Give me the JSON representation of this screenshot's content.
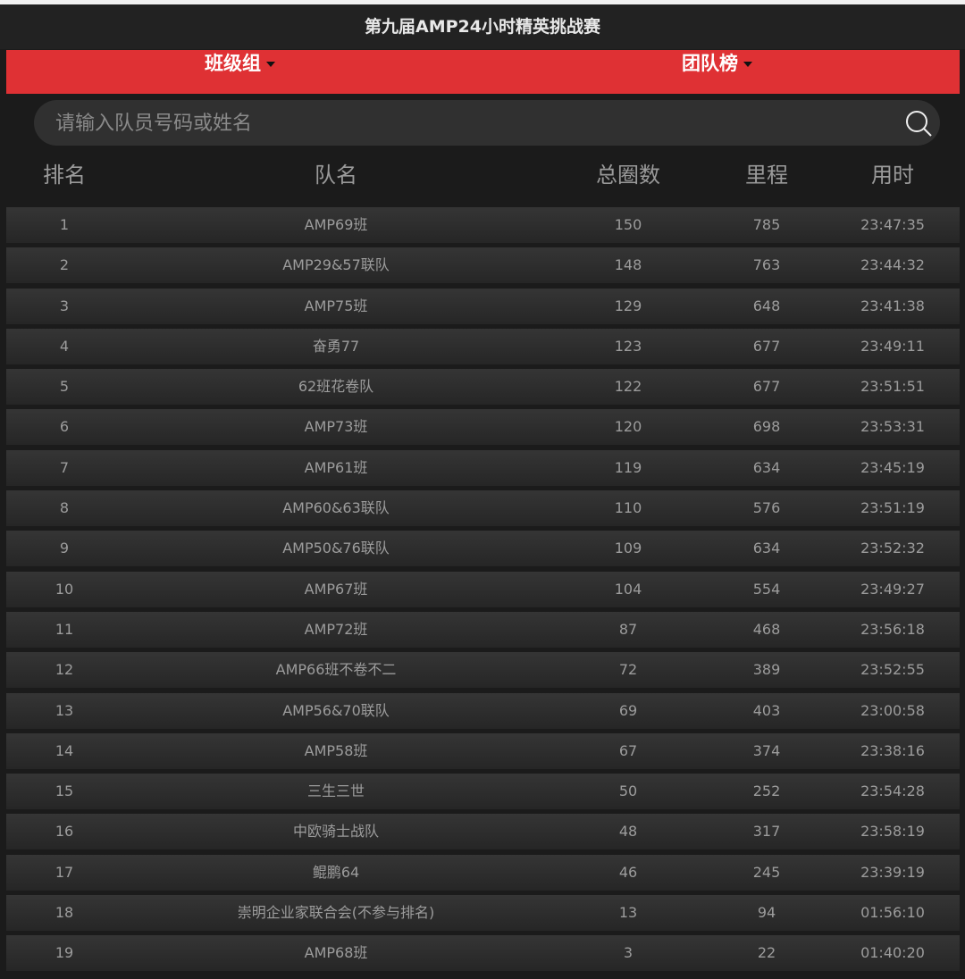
{
  "title": "第九届AMP24小时精英挑战赛",
  "filters": {
    "group": "班级组",
    "board": "团队榜"
  },
  "search": {
    "placeholder": "请输入队员号码或姓名",
    "value": ""
  },
  "colors": {
    "accent": "#df3134",
    "background": "#1b1b1b"
  },
  "table": {
    "headers": [
      "排名",
      "队名",
      "总圈数",
      "里程",
      "用时"
    ],
    "rows": [
      [
        "1",
        "AMP69班",
        "150",
        "785",
        "23:47:35"
      ],
      [
        "2",
        "AMP29&57联队",
        "148",
        "763",
        "23:44:32"
      ],
      [
        "3",
        "AMP75班",
        "129",
        "648",
        "23:41:38"
      ],
      [
        "4",
        "奋勇77",
        "123",
        "677",
        "23:49:11"
      ],
      [
        "5",
        "62班花卷队",
        "122",
        "677",
        "23:51:51"
      ],
      [
        "6",
        "AMP73班",
        "120",
        "698",
        "23:53:31"
      ],
      [
        "7",
        "AMP61班",
        "119",
        "634",
        "23:45:19"
      ],
      [
        "8",
        "AMP60&63联队",
        "110",
        "576",
        "23:51:19"
      ],
      [
        "9",
        "AMP50&76联队",
        "109",
        "634",
        "23:52:32"
      ],
      [
        "10",
        "AMP67班",
        "104",
        "554",
        "23:49:27"
      ],
      [
        "11",
        "AMP72班",
        "87",
        "468",
        "23:56:18"
      ],
      [
        "12",
        "AMP66班不卷不二",
        "72",
        "389",
        "23:52:55"
      ],
      [
        "13",
        "AMP56&70联队",
        "69",
        "403",
        "23:00:58"
      ],
      [
        "14",
        "AMP58班",
        "67",
        "374",
        "23:38:16"
      ],
      [
        "15",
        "三生三世",
        "50",
        "252",
        "23:54:28"
      ],
      [
        "16",
        "中欧骑士战队",
        "48",
        "317",
        "23:58:19"
      ],
      [
        "17",
        "鲲鹏64",
        "46",
        "245",
        "23:39:19"
      ],
      [
        "18",
        "崇明企业家联合会(不参与排名)",
        "13",
        "94",
        "01:56:10"
      ],
      [
        "19",
        "AMP68班",
        "3",
        "22",
        "01:40:20"
      ]
    ]
  }
}
